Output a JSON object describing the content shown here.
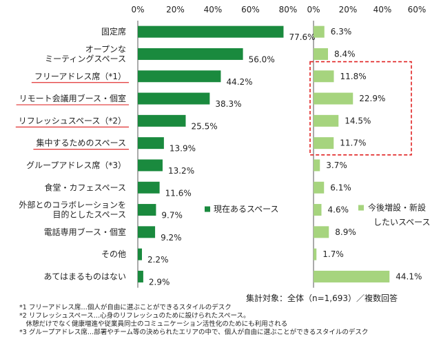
{
  "chart_data": [
    {
      "type": "bar",
      "orientation": "horizontal",
      "xlim": [
        0,
        80
      ],
      "ticks": [
        "0%",
        "20%",
        "40%",
        "60%",
        "80%"
      ],
      "legend": "現在あるスペース",
      "color": "#1a8a3e",
      "values": [
        77.6,
        56.0,
        44.2,
        38.3,
        25.5,
        13.9,
        13.2,
        11.6,
        9.7,
        9.2,
        2.2,
        2.9
      ],
      "value_labels": [
        "77.6%",
        "56.0%",
        "44.2%",
        "38.3%",
        "25.5%",
        "13.9%",
        "13.2%",
        "11.6%",
        "9.7%",
        "9.2%",
        "2.2%",
        "2.9%"
      ]
    },
    {
      "type": "bar",
      "orientation": "horizontal",
      "xlim": [
        0,
        60
      ],
      "ticks": [
        "0%",
        "20%",
        "40%",
        "60%"
      ],
      "legend": [
        "今後増設・新設",
        "したいスペース"
      ],
      "color": "#a6d47e",
      "values": [
        6.3,
        8.4,
        11.8,
        22.9,
        14.5,
        11.7,
        3.7,
        6.1,
        4.6,
        8.9,
        1.7,
        44.1
      ],
      "value_labels": [
        "6.3%",
        "8.4%",
        "11.8%",
        "22.9%",
        "14.5%",
        "11.7%",
        "3.7%",
        "6.1%",
        "4.6%",
        "8.9%",
        "1.7%",
        "44.1%"
      ]
    }
  ],
  "categories": [
    {
      "lines": [
        "固定席"
      ],
      "underline": false
    },
    {
      "lines": [
        "オープンな",
        "ミーティングスペース"
      ],
      "underline": false
    },
    {
      "lines": [
        "フリーアドレス席（*1）"
      ],
      "underline": true
    },
    {
      "lines": [
        "リモート会議用ブース・個室"
      ],
      "underline": true
    },
    {
      "lines": [
        "リフレッシュスペース（*2）"
      ],
      "underline": true
    },
    {
      "lines": [
        "集中するためのスペース"
      ],
      "underline": true
    },
    {
      "lines": [
        "グループアドレス席（*3）"
      ],
      "underline": false
    },
    {
      "lines": [
        "食堂・カフェスペース"
      ],
      "underline": false
    },
    {
      "lines": [
        "外部とのコラボレーションを",
        "目的としたスペース"
      ],
      "underline": false
    },
    {
      "lines": [
        "電話専用ブース・個室"
      ],
      "underline": false
    },
    {
      "lines": [
        "その他"
      ],
      "underline": false
    },
    {
      "lines": [
        "あてはまるものはない"
      ],
      "underline": false
    }
  ],
  "highlight_colors": {
    "underline": "#e03030",
    "dashed_box": "#e02020"
  },
  "sample_note": "集計対象：全体（n=1,693）／複数回答",
  "footnotes": [
    "*1 フリーアドレス席…個人が自由に選ぶことができるスタイルのデスク",
    "*2 リフレッシュスペース…心身のリフレッシュのために設けられたスペース。",
    "　休憩だけでなく健康増進や従業員同士のコミュニケーション活性化のためにも利用される",
    "*3 グループアドレス席…部署やチーム等の決められたエリアの中で、個人が自由に選ぶことができるスタイルのデスク"
  ]
}
